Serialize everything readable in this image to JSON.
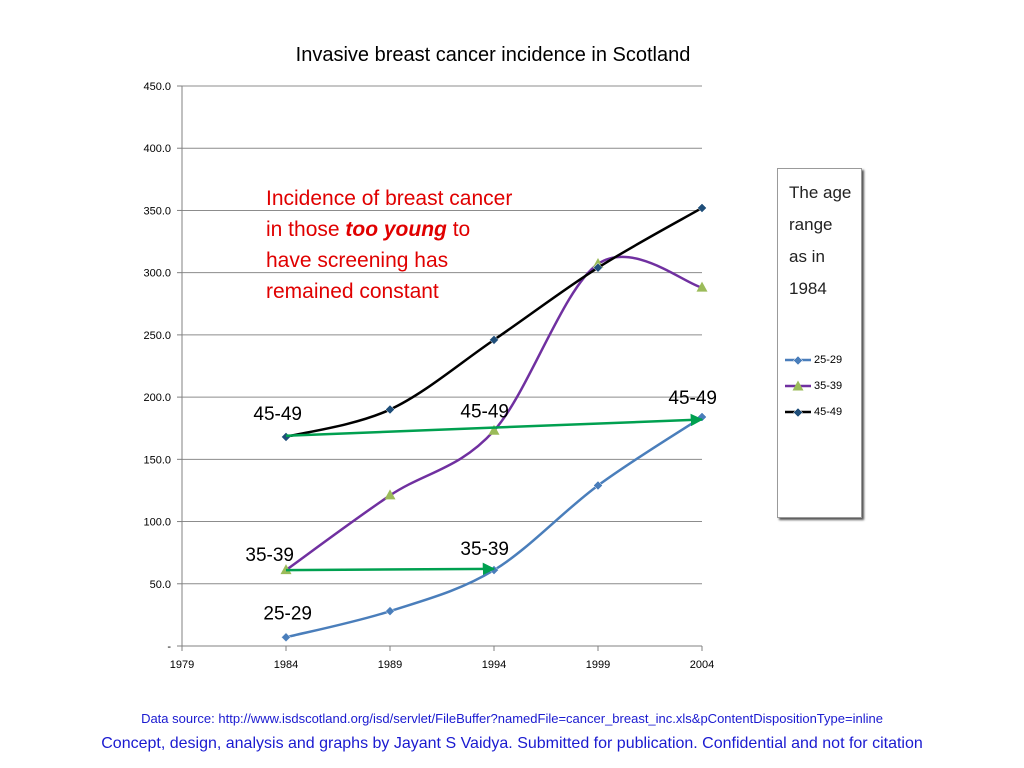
{
  "chart_data": {
    "type": "line",
    "title": "Invasive breast cancer incidence in Scotland",
    "x": [
      1984,
      1989,
      1994,
      1999,
      2004
    ],
    "x_ticks": [
      "1979",
      "1984",
      "1989",
      "1994",
      "1999",
      "2004"
    ],
    "xlim": [
      1979,
      2004
    ],
    "y_ticks": [
      "-",
      "50.0",
      "100.0",
      "150.0",
      "200.0",
      "250.0",
      "300.0",
      "350.0",
      "400.0",
      "450.0"
    ],
    "ylim": [
      0,
      450
    ],
    "grid": "horizontal",
    "series": [
      {
        "name": "25-29",
        "values": [
          7,
          28,
          61,
          129,
          184
        ],
        "color": "#4a7ebb",
        "marker": "diamond"
      },
      {
        "name": "35-39",
        "values": [
          61,
          121,
          173,
          307,
          288
        ],
        "color": "#7030a0",
        "marker": "triangle",
        "marker_color": "#9bbb59"
      },
      {
        "name": "45-49",
        "values": [
          168,
          190,
          246,
          304,
          352
        ],
        "color": "#000000",
        "marker": "diamond",
        "marker_color": "#1f4e79"
      }
    ],
    "cohort_arrows": [
      {
        "from": [
          1984,
          61
        ],
        "to": [
          1994,
          62
        ],
        "color": "#00a050"
      },
      {
        "from": [
          1984,
          169
        ],
        "to": [
          2004,
          182
        ],
        "color": "#00a050"
      }
    ],
    "labels": [
      {
        "text": "25-29",
        "x": 1984,
        "y": 7,
        "anchor": "end",
        "dx": 26,
        "dy": -18
      },
      {
        "text": "35-39",
        "x": 1984,
        "y": 61,
        "anchor": "end",
        "dx": 8,
        "dy": -9
      },
      {
        "text": "45-49",
        "x": 1984,
        "y": 168,
        "anchor": "end",
        "dx": 16,
        "dy": -17
      },
      {
        "text": "35-39",
        "x": 1994,
        "y": 62,
        "anchor": "end",
        "dx": 15,
        "dy": -14
      },
      {
        "text": "45-49",
        "x": 1994,
        "y": 173,
        "anchor": "end",
        "dx": 15,
        "dy": -13
      },
      {
        "text": "45-49",
        "x": 2004,
        "y": 184,
        "anchor": "end",
        "dx": 15,
        "dy": -13
      }
    ]
  },
  "legend": {
    "title": "The age range as in 1984",
    "position": "right"
  },
  "annotation": {
    "line1": "Incidence of breast cancer",
    "line2_pre": "in those ",
    "line2_em": "too young",
    "line2_post": " to",
    "line3": "have screening has",
    "line4": "remained constant"
  },
  "footer": {
    "source": "Data source: http://www.isdscotland.org/isd/servlet/FileBuffer?namedFile=cancer_breast_inc.xls&pContentDispositionType=inline",
    "credit": "Concept, design, analysis and graphs by Jayant S Vaidya.  Submitted for publication. Confidential and not for citation"
  }
}
